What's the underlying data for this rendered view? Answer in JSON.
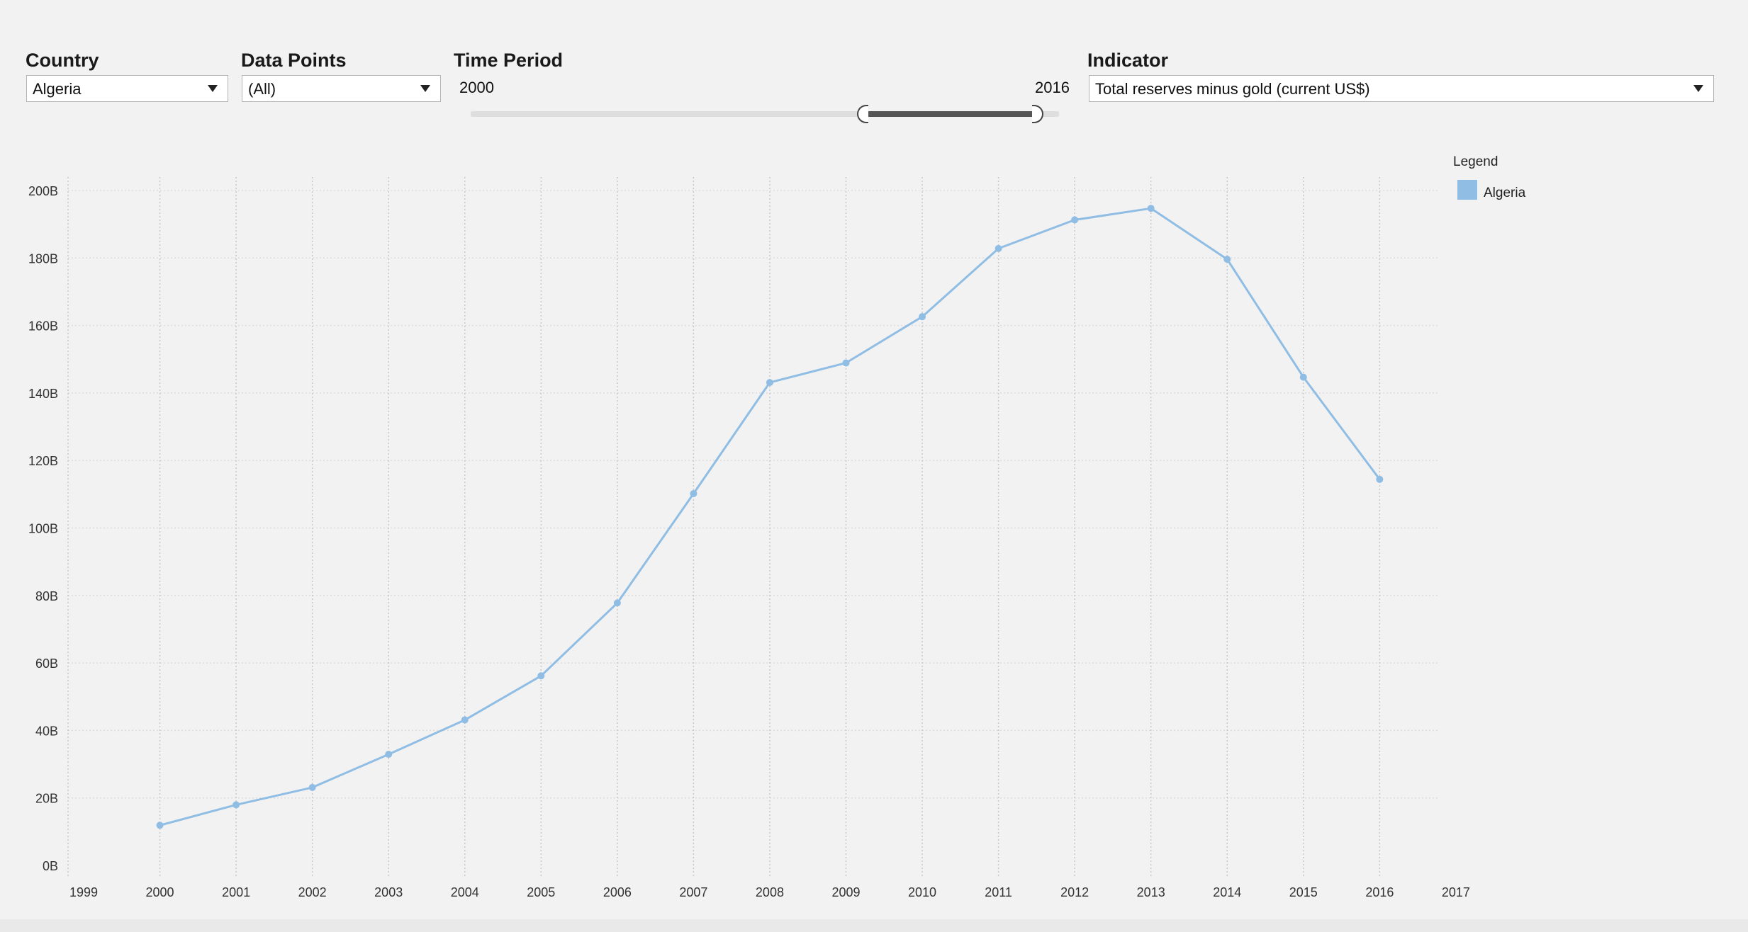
{
  "filters": {
    "country": {
      "title": "Country",
      "value": "Algeria"
    },
    "data_points": {
      "title": "Data Points",
      "value": "(All)"
    },
    "time_period": {
      "title": "Time Period",
      "start": "2000",
      "end": "2016",
      "range_min": 1999,
      "range_max": 2017
    },
    "indicator": {
      "title": "Indicator",
      "value": "Total reserves minus gold (current US$)"
    }
  },
  "legend": {
    "title": "Legend",
    "items": [
      {
        "label": "Algeria",
        "color": "#8fbde4"
      }
    ]
  },
  "chart_data": {
    "type": "line",
    "x": [
      2000,
      2001,
      2002,
      2003,
      2004,
      2005,
      2006,
      2007,
      2008,
      2009,
      2010,
      2011,
      2012,
      2013,
      2014,
      2015,
      2016
    ],
    "series": [
      {
        "name": "Algeria",
        "color": "#8fbde4",
        "values": [
          11.9,
          17.96,
          23.11,
          32.92,
          43.11,
          56.18,
          77.78,
          110.18,
          143.1,
          148.91,
          162.61,
          182.82,
          191.3,
          194.71,
          179.62,
          144.68,
          114.41
        ]
      }
    ],
    "xlim": [
      1999,
      2017
    ],
    "xticks": [
      "1999",
      "2000",
      "2001",
      "2002",
      "2003",
      "2004",
      "2005",
      "2006",
      "2007",
      "2008",
      "2009",
      "2010",
      "2011",
      "2012",
      "2013",
      "2014",
      "2015",
      "2016",
      "2017"
    ],
    "ylim": [
      0,
      200
    ],
    "yticks": [
      "0B",
      "20B",
      "40B",
      "60B",
      "80B",
      "100B",
      "120B",
      "140B",
      "160B",
      "180B",
      "200B"
    ],
    "y_unit": "B",
    "grid": {
      "x": true,
      "y": true
    },
    "legend_position": "right"
  }
}
